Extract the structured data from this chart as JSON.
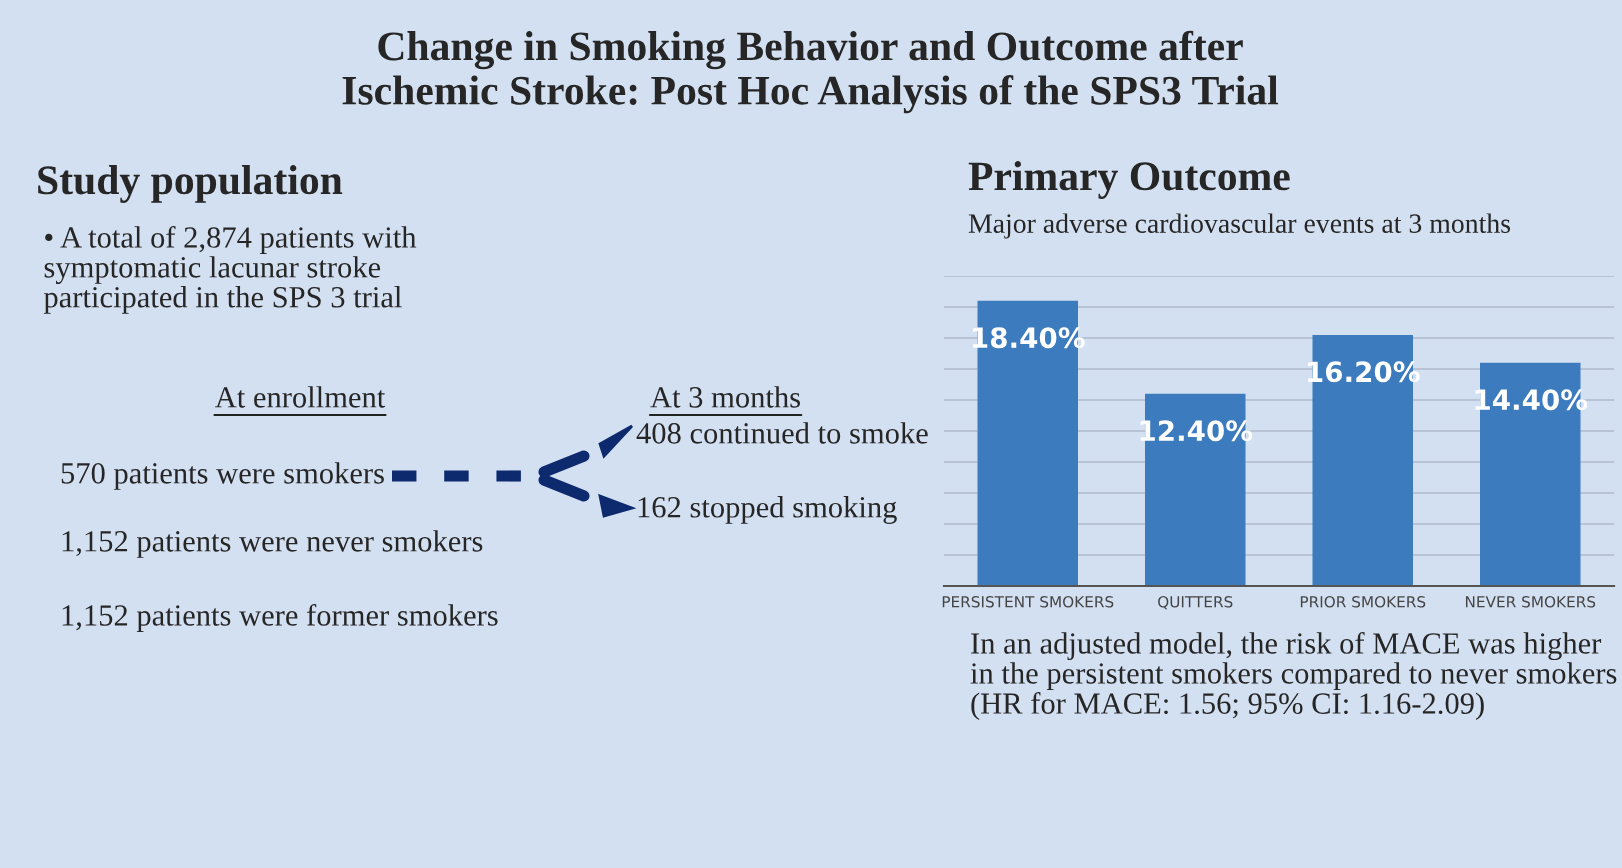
{
  "chart_data": [
    {
      "type": "other",
      "title": "Change in Smoking Behavior and Outcome after\nIschemic Stroke: Post Hoc Analysis of the SPS3 Trial",
      "subtitle": "Study population",
      "annotations": [
        "• A total of 2,874 patients with symptomatic lacunar stroke participated in the SPS 3 trial",
        "At enrollment",
        "At 3 months",
        "570 patients were smokers",
        "408 continued to smoke",
        "162 stopped smoking",
        "1,152 patients were never smokers",
        "1,152 patients were former smokers"
      ]
    },
    {
      "type": "bar",
      "title": "Primary Outcome",
      "subtitle": "Major adverse cardiovascular events at 3 months",
      "categories": [
        "PERSISTENT SMOKERS",
        "QUITTERS",
        "PRIOR SMOKERS",
        "NEVER SMOKERS"
      ],
      "values": [
        18.4,
        12.4,
        16.2,
        14.4
      ],
      "value_labels": [
        "18.40%",
        "12.40%",
        "16.20%",
        "14.40%"
      ],
      "color": "#3d7bbf",
      "ylim": [
        0,
        20
      ],
      "yticks": [
        {
          "value": 0,
          "label": null
        },
        {
          "value": 2,
          "label": null
        },
        {
          "value": 4,
          "label": null
        },
        {
          "value": 6,
          "label": null
        },
        {
          "value": 8,
          "label": null
        },
        {
          "value": 10,
          "label": null
        },
        {
          "value": 12,
          "label": null
        },
        {
          "value": 14,
          "label": null
        },
        {
          "value": 16,
          "label": null
        },
        {
          "value": 18,
          "label": null
        },
        {
          "value": 20,
          "label": null
        }
      ],
      "grid": "y",
      "tick_labels": "x",
      "annotations": [
        "In an adjusted model, the risk of MACE was higher in the persistent smokers compared to never smokers (HR for MACE: 1.56; 95% CI: 1.16-2.09)"
      ]
    }
  ]
}
